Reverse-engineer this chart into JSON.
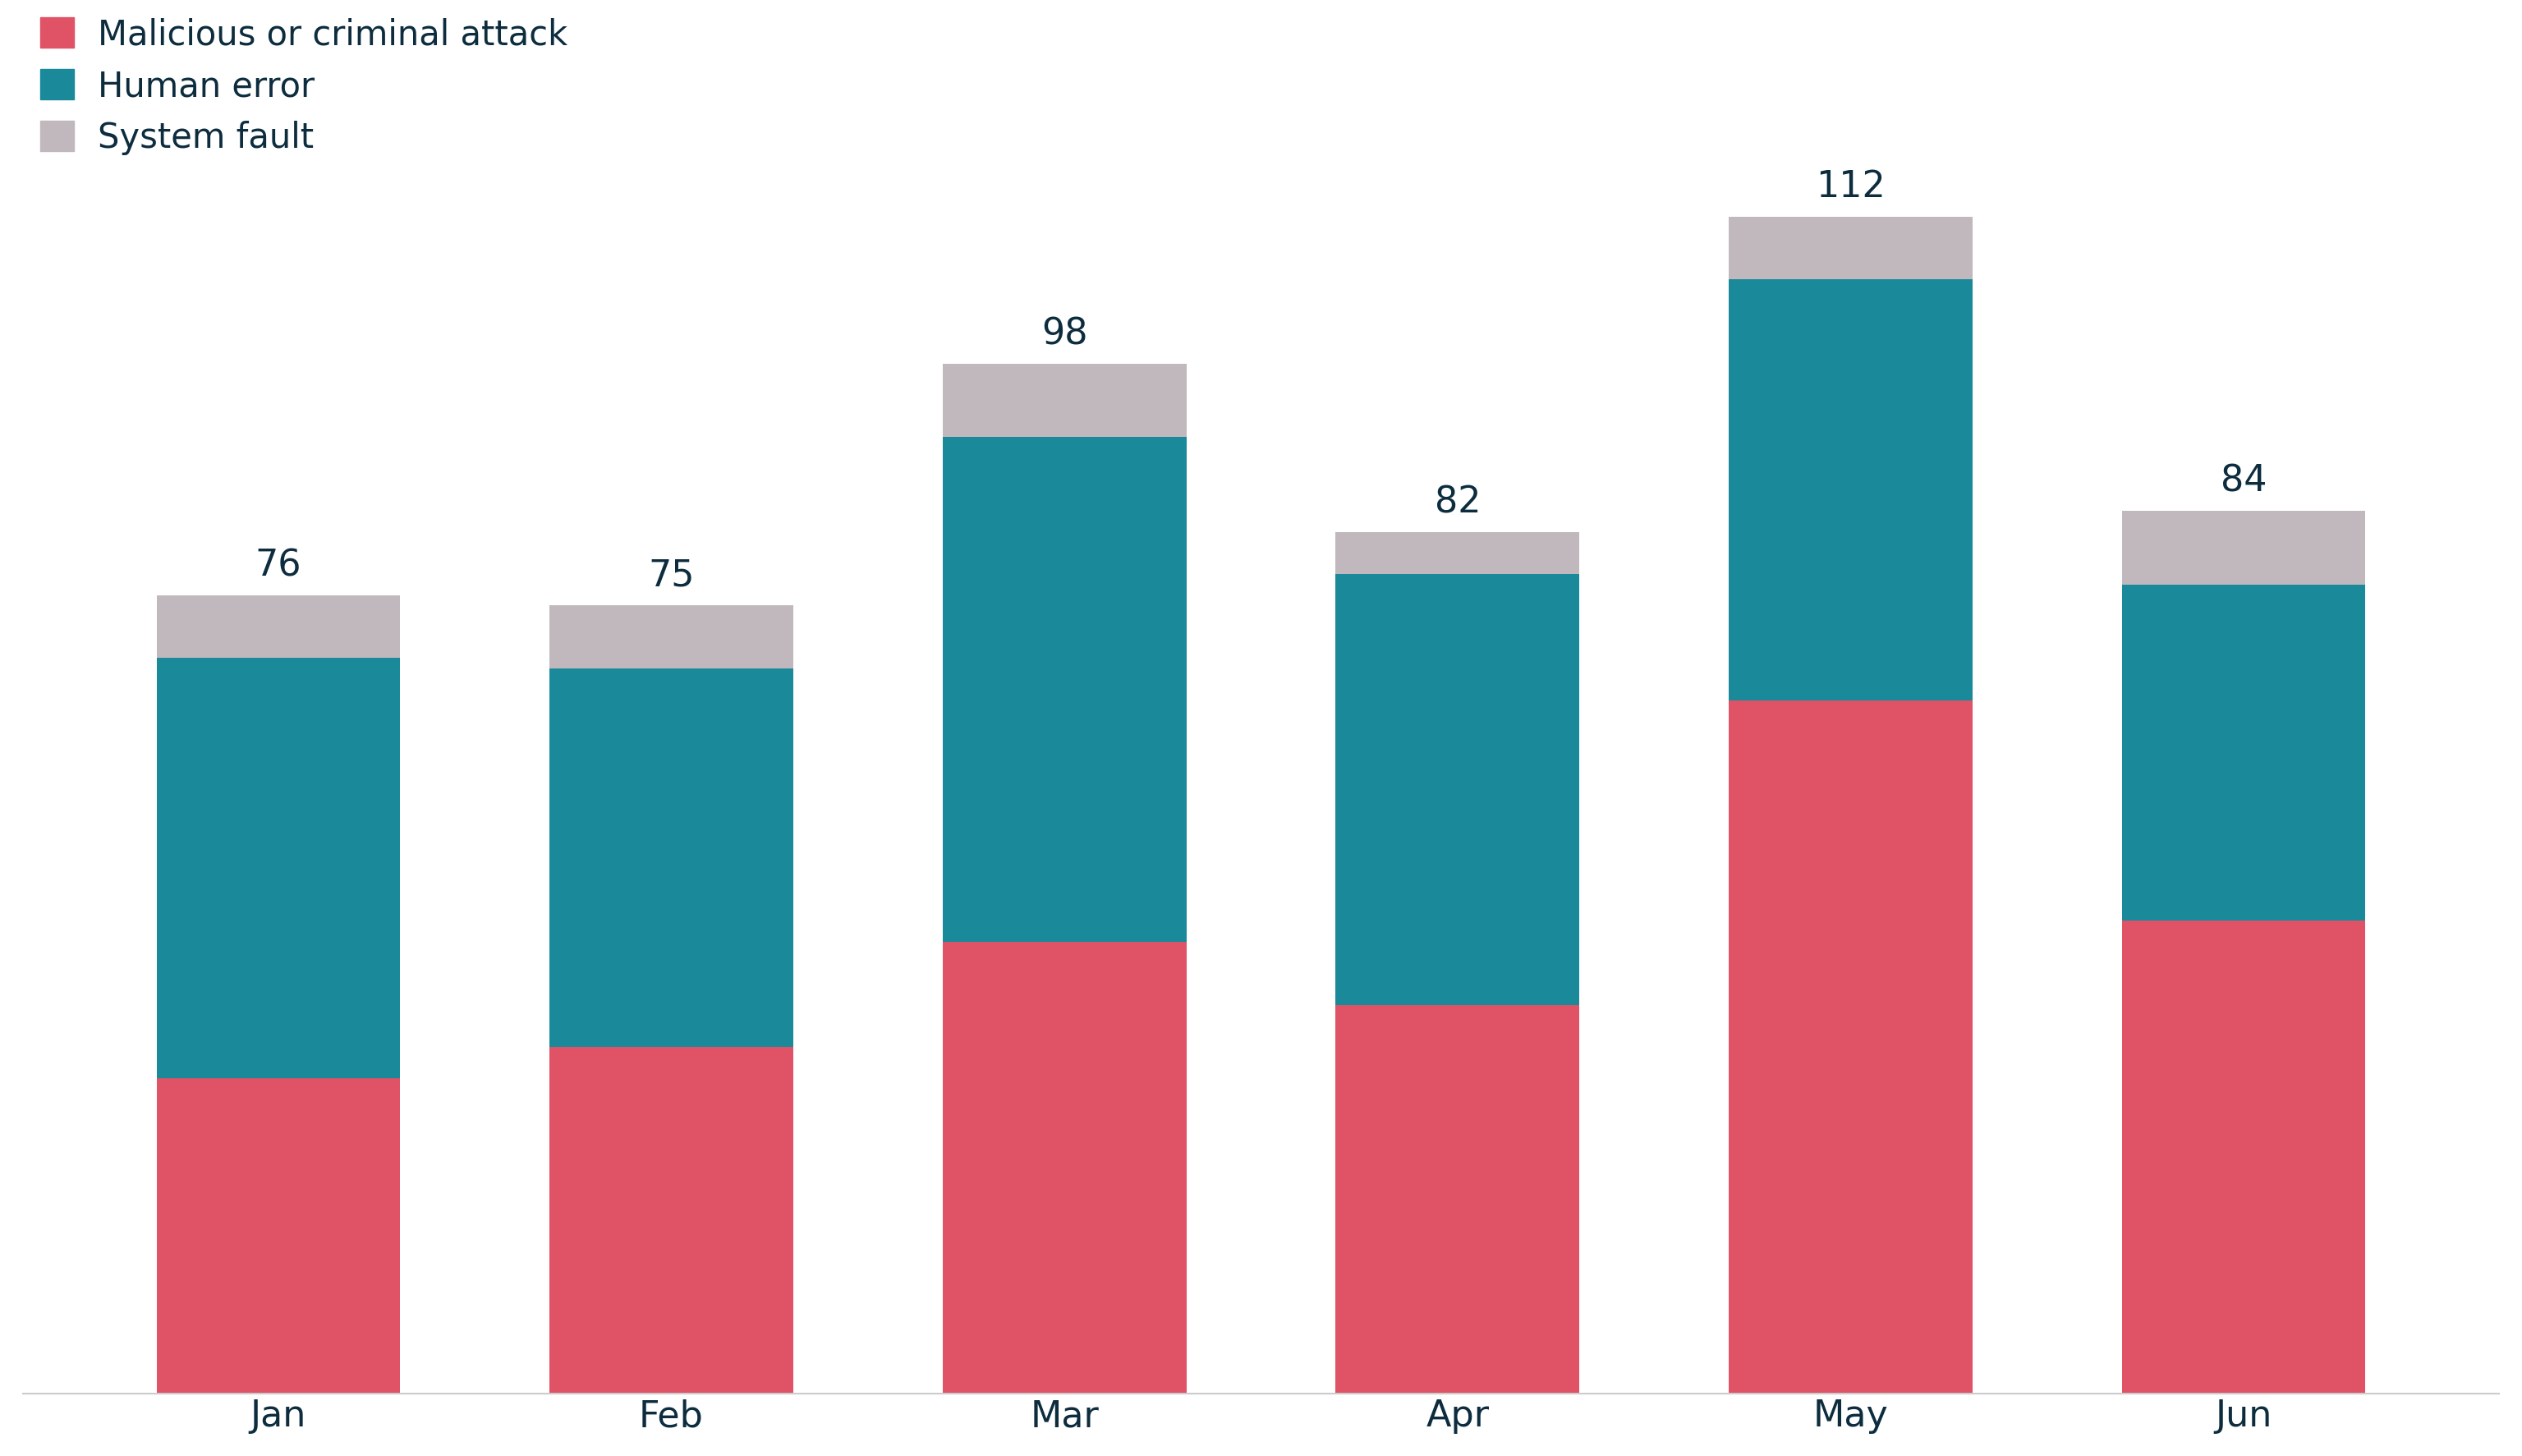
{
  "months": [
    "Jan",
    "Feb",
    "Mar",
    "Apr",
    "May",
    "Jun"
  ],
  "totals": [
    76,
    75,
    98,
    82,
    112,
    84
  ],
  "malicious": [
    30,
    33,
    43,
    37,
    66,
    45
  ],
  "human_error": [
    40,
    36,
    48,
    41,
    40,
    32
  ],
  "system_fault": [
    6,
    6,
    7,
    4,
    6,
    7
  ],
  "color_malicious": "#e05266",
  "color_human_error": "#1a8a9b",
  "color_system_fault": "#c0b8bc",
  "background_color": "#ffffff",
  "text_color": "#0d2d3f",
  "axis_line_color": "#cccccc",
  "label_malicious": "Malicious or criminal attack",
  "label_human_error": "Human error",
  "label_system_fault": "System fault",
  "legend_fontsize": 30,
  "tick_fontsize": 32,
  "annotation_fontsize": 32,
  "bar_width": 0.62
}
